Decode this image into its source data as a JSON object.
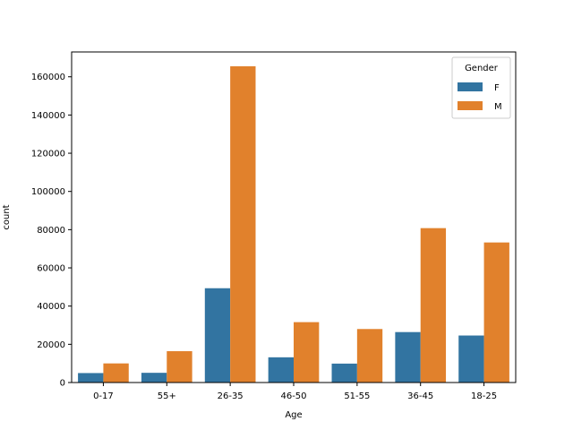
{
  "chart_data": {
    "type": "bar",
    "title": "",
    "xlabel": "Age",
    "ylabel": "count",
    "categories": [
      "0-17",
      "55+",
      "26-35",
      "46-50",
      "51-55",
      "36-45",
      "18-25"
    ],
    "series": [
      {
        "name": "F",
        "color": "#3274a1",
        "values": [
          4950,
          5080,
          49350,
          13200,
          9900,
          26400,
          24600
        ]
      },
      {
        "name": "M",
        "color": "#e1812c",
        "values": [
          10000,
          16400,
          165500,
          31600,
          28000,
          80800,
          73300
        ]
      }
    ],
    "ylim": [
      0,
      173000
    ],
    "yticks": [
      0,
      20000,
      40000,
      60000,
      80000,
      100000,
      120000,
      140000,
      160000
    ],
    "grid": false,
    "legend": {
      "title": "Gender",
      "placement": "top-right"
    }
  }
}
